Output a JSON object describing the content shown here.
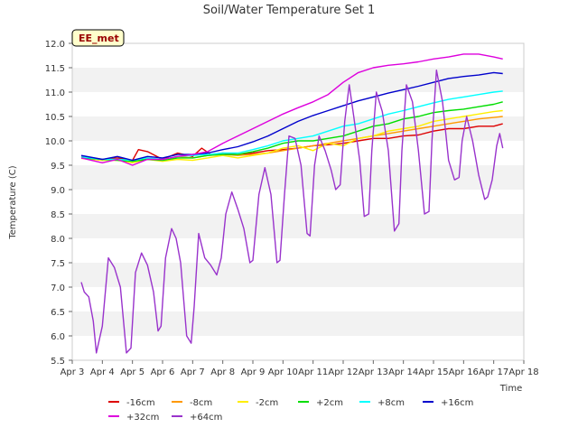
{
  "chart_data": {
    "type": "line",
    "title": "Soil/Water Temperature Set 1",
    "xlabel": "Time",
    "ylabel": "Temperature (C)",
    "annotation": "EE_met",
    "ylim": [
      5.5,
      12.0
    ],
    "xlim": [
      3,
      18
    ],
    "y_ticks": [
      "5.5",
      "6.0",
      "6.5",
      "7.0",
      "7.5",
      "8.0",
      "8.5",
      "9.0",
      "9.5",
      "10.0",
      "10.5",
      "11.0",
      "11.5",
      "12.0"
    ],
    "x_ticks": [
      "Apr 3",
      "Apr 4",
      "Apr 5",
      "Apr 6",
      "Apr 7",
      "Apr 8",
      "Apr 9",
      "Apr 10",
      "Apr 11",
      "Apr 12",
      "Apr 13",
      "Apr 14",
      "Apr 15",
      "Apr 16",
      "Apr 17",
      "Apr 18"
    ],
    "grid": "horizontal alternating bands",
    "legend_position": "bottom",
    "series": [
      {
        "name": "-16cm",
        "color": "#dd0000",
        "x": [
          3.3,
          4,
          4.5,
          5,
          5.2,
          5.5,
          6,
          6.5,
          7,
          7.3,
          7.6,
          8,
          8.5,
          9,
          9.5,
          10,
          10.5,
          11,
          11.5,
          12,
          12.5,
          13,
          13.5,
          14,
          14.5,
          15,
          15.5,
          16,
          16.5,
          17,
          17.3
        ],
        "y": [
          9.68,
          9.62,
          9.65,
          9.6,
          9.82,
          9.78,
          9.62,
          9.75,
          9.68,
          9.85,
          9.72,
          9.75,
          9.72,
          9.75,
          9.8,
          9.82,
          9.85,
          9.9,
          9.92,
          9.95,
          10.0,
          10.05,
          10.05,
          10.1,
          10.12,
          10.2,
          10.25,
          10.25,
          10.3,
          10.3,
          10.35
        ]
      },
      {
        "name": "-8cm",
        "color": "#ff9900",
        "x": [
          3.3,
          4,
          4.5,
          5,
          5.5,
          6,
          6.5,
          7,
          7.5,
          8,
          8.5,
          9,
          9.5,
          10,
          10.5,
          11,
          11.5,
          12,
          12.5,
          13,
          13.5,
          14,
          14.5,
          15,
          15.5,
          16,
          16.5,
          17,
          17.3
        ],
        "y": [
          9.66,
          9.6,
          9.62,
          9.58,
          9.65,
          9.6,
          9.68,
          9.65,
          9.7,
          9.72,
          9.7,
          9.72,
          9.75,
          9.8,
          9.85,
          9.9,
          9.95,
          10.0,
          10.05,
          10.1,
          10.15,
          10.2,
          10.25,
          10.3,
          10.35,
          10.4,
          10.45,
          10.48,
          10.5
        ]
      },
      {
        "name": "-2cm",
        "color": "#ffee00",
        "x": [
          3.3,
          4,
          4.5,
          5,
          5.5,
          6,
          6.5,
          7,
          7.5,
          8,
          8.5,
          9,
          9.5,
          10,
          10.5,
          11,
          11.5,
          12,
          12.5,
          13,
          13.5,
          14,
          14.5,
          15,
          15.5,
          16,
          16.5,
          17,
          17.3
        ],
        "y": [
          9.64,
          9.6,
          9.6,
          9.55,
          9.62,
          9.58,
          9.62,
          9.6,
          9.65,
          9.7,
          9.65,
          9.7,
          9.75,
          9.85,
          9.9,
          9.8,
          9.95,
          9.9,
          10.05,
          10.1,
          10.2,
          10.25,
          10.3,
          10.4,
          10.45,
          10.5,
          10.55,
          10.6,
          10.62
        ]
      },
      {
        "name": "+2cm",
        "color": "#00dd00",
        "x": [
          3.3,
          4,
          4.5,
          5,
          5.5,
          6,
          6.5,
          7,
          7.5,
          8,
          8.5,
          9,
          9.5,
          10,
          10.5,
          11,
          11.5,
          12,
          12.5,
          13,
          13.5,
          14,
          14.5,
          15,
          15.5,
          16,
          16.5,
          17,
          17.3
        ],
        "y": [
          9.65,
          9.62,
          9.6,
          9.58,
          9.62,
          9.6,
          9.65,
          9.65,
          9.7,
          9.72,
          9.72,
          9.78,
          9.85,
          9.95,
          10.0,
          10.0,
          10.05,
          10.1,
          10.2,
          10.3,
          10.35,
          10.45,
          10.5,
          10.58,
          10.62,
          10.65,
          10.7,
          10.75,
          10.8
        ]
      },
      {
        "name": "+8cm",
        "color": "#00ffff",
        "x": [
          3.3,
          4,
          4.5,
          5,
          5.5,
          6,
          6.5,
          7,
          7.5,
          8,
          8.5,
          9,
          9.5,
          10,
          10.5,
          11,
          11.5,
          12,
          12.5,
          13,
          13.5,
          14,
          14.5,
          15,
          15.5,
          16,
          16.5,
          17,
          17.3
        ],
        "y": [
          9.67,
          9.62,
          9.62,
          9.6,
          9.65,
          9.62,
          9.68,
          9.7,
          9.72,
          9.75,
          9.75,
          9.82,
          9.9,
          10.0,
          10.05,
          10.1,
          10.2,
          10.3,
          10.35,
          10.45,
          10.55,
          10.62,
          10.7,
          10.78,
          10.85,
          10.9,
          10.95,
          11.0,
          11.02
        ]
      },
      {
        "name": "+16cm",
        "color": "#0000cc",
        "x": [
          3.3,
          4,
          4.5,
          5,
          5.5,
          6,
          6.5,
          7,
          7.5,
          8,
          8.5,
          9,
          9.5,
          10,
          10.5,
          11,
          11.5,
          12,
          12.5,
          13,
          13.5,
          14,
          14.5,
          15,
          15.5,
          16,
          16.5,
          17,
          17.3
        ],
        "y": [
          9.7,
          9.62,
          9.68,
          9.6,
          9.68,
          9.65,
          9.72,
          9.72,
          9.75,
          9.82,
          9.88,
          9.98,
          10.1,
          10.25,
          10.4,
          10.52,
          10.62,
          10.72,
          10.82,
          10.9,
          10.98,
          11.05,
          11.12,
          11.2,
          11.28,
          11.32,
          11.35,
          11.4,
          11.38
        ]
      },
      {
        "name": "+32cm",
        "color": "#dd00dd",
        "x": [
          3.3,
          4,
          4.5,
          5,
          5.5,
          6,
          6.5,
          7,
          7.5,
          8,
          8.5,
          9,
          9.5,
          10,
          10.5,
          11,
          11.5,
          12,
          12.5,
          13,
          13.5,
          14,
          14.5,
          15,
          15.5,
          16,
          16.5,
          17,
          17.3
        ],
        "y": [
          9.65,
          9.55,
          9.62,
          9.5,
          9.62,
          9.62,
          9.68,
          9.72,
          9.78,
          9.95,
          10.1,
          10.25,
          10.4,
          10.55,
          10.68,
          10.8,
          10.95,
          11.2,
          11.4,
          11.5,
          11.55,
          11.58,
          11.62,
          11.68,
          11.72,
          11.78,
          11.78,
          11.72,
          11.68
        ]
      },
      {
        "name": "+64cm",
        "color": "#9933cc",
        "x": [
          3.3,
          3.4,
          3.55,
          3.7,
          3.8,
          4.0,
          4.2,
          4.4,
          4.6,
          4.8,
          4.95,
          5.1,
          5.3,
          5.5,
          5.7,
          5.85,
          5.95,
          6.1,
          6.3,
          6.45,
          6.6,
          6.8,
          6.95,
          7.05,
          7.2,
          7.4,
          7.6,
          7.8,
          7.95,
          8.1,
          8.3,
          8.5,
          8.7,
          8.9,
          9.0,
          9.2,
          9.4,
          9.6,
          9.8,
          9.9,
          10.05,
          10.2,
          10.4,
          10.6,
          10.8,
          10.9,
          11.05,
          11.2,
          11.4,
          11.6,
          11.75,
          11.9,
          12.05,
          12.2,
          12.35,
          12.55,
          12.7,
          12.85,
          12.95,
          13.1,
          13.3,
          13.5,
          13.7,
          13.85,
          13.95,
          14.1,
          14.3,
          14.5,
          14.7,
          14.85,
          14.95,
          15.1,
          15.3,
          15.5,
          15.7,
          15.85,
          15.95,
          16.1,
          16.3,
          16.5,
          16.7,
          16.8,
          16.95,
          17.1,
          17.2,
          17.3
        ],
        "y": [
          7.1,
          6.9,
          6.8,
          6.3,
          5.65,
          6.2,
          7.6,
          7.4,
          7.0,
          5.65,
          5.75,
          7.3,
          7.7,
          7.45,
          6.9,
          6.1,
          6.2,
          7.6,
          8.2,
          8.0,
          7.5,
          6.0,
          5.85,
          6.6,
          8.1,
          7.6,
          7.45,
          7.25,
          7.6,
          8.5,
          8.95,
          8.6,
          8.2,
          7.5,
          7.55,
          8.9,
          9.45,
          8.9,
          7.5,
          7.55,
          8.9,
          10.1,
          10.05,
          9.5,
          8.1,
          8.05,
          9.5,
          10.1,
          9.8,
          9.4,
          9.0,
          9.1,
          10.4,
          11.15,
          10.5,
          9.6,
          8.45,
          8.5,
          9.8,
          11.0,
          10.6,
          9.8,
          8.15,
          8.3,
          9.8,
          11.15,
          10.8,
          9.8,
          8.5,
          8.55,
          10.0,
          11.45,
          10.8,
          9.6,
          9.2,
          9.25,
          10.0,
          10.5,
          10.0,
          9.3,
          8.8,
          8.85,
          9.2,
          9.9,
          10.15,
          9.85
        ]
      }
    ]
  }
}
